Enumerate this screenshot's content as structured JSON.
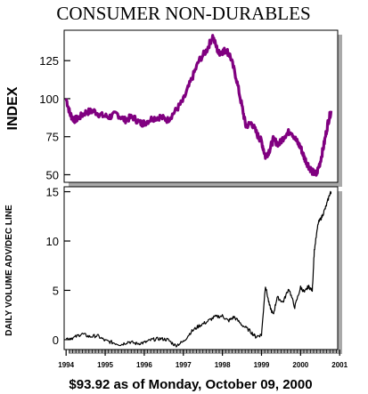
{
  "chart_data": [
    {
      "type": "line",
      "title": "CONSUMER NON-DURABLES",
      "ylabel": "INDEX",
      "ylim": [
        45,
        145
      ],
      "yticks": [
        50,
        75,
        100,
        125
      ],
      "xlim": [
        1993.95,
        2000.95
      ],
      "xticks": [
        "1994",
        "1995",
        "1996",
        "1997",
        "1998",
        "1999",
        "2000",
        "2001"
      ],
      "color": "#800080",
      "series": [
        {
          "x": [
            1994.0,
            1994.1,
            1994.2,
            1994.3,
            1994.5,
            1994.7,
            1994.9,
            1995.1,
            1995.3,
            1995.5,
            1995.7,
            1995.9,
            1996.0,
            1996.2,
            1996.4,
            1996.6,
            1996.8,
            1997.0,
            1997.2,
            1997.4,
            1997.6,
            1997.75,
            1997.9,
            1998.0,
            1998.1,
            1998.2,
            1998.35,
            1998.5,
            1998.6,
            1998.75,
            1998.9,
            1999.0,
            1999.1,
            1999.2,
            1999.3,
            1999.45,
            1999.6,
            1999.75,
            1999.9,
            2000.0,
            2000.1,
            2000.2,
            2000.3,
            2000.4,
            2000.5,
            2000.6,
            2000.7,
            2000.78
          ],
          "y": [
            100,
            90,
            86,
            87,
            91,
            92,
            89,
            88,
            90,
            86,
            88,
            84,
            84,
            87,
            88,
            86,
            92,
            99,
            112,
            125,
            132,
            141,
            130,
            131,
            132,
            128,
            114,
            95,
            82,
            84,
            76,
            72,
            62,
            66,
            73,
            70,
            76,
            79,
            72,
            68,
            61,
            56,
            52,
            50,
            58,
            70,
            84,
            92
          ]
        }
      ]
    },
    {
      "type": "line",
      "ylabel": "DAILY VOLUME ADV/DEC LINE",
      "ylim": [
        -1,
        15.5
      ],
      "yticks": [
        0,
        5,
        10,
        15
      ],
      "xlim": [
        1993.95,
        2000.95
      ],
      "xticks": [
        "1994",
        "1995",
        "1996",
        "1997",
        "1998",
        "1999",
        "2000",
        "2001"
      ],
      "color": "#000000",
      "series": [
        {
          "x": [
            1994.0,
            1994.2,
            1994.4,
            1994.6,
            1994.8,
            1995.0,
            1995.2,
            1995.4,
            1995.6,
            1995.8,
            1996.0,
            1996.2,
            1996.4,
            1996.6,
            1996.8,
            1997.0,
            1997.2,
            1997.4,
            1997.6,
            1997.8,
            1998.0,
            1998.15,
            1998.3,
            1998.5,
            1998.7,
            1998.85,
            1999.0,
            1999.1,
            1999.2,
            1999.3,
            1999.4,
            1999.55,
            1999.7,
            1999.85,
            2000.0,
            2000.1,
            2000.2,
            2000.3,
            2000.35,
            2000.45,
            2000.55,
            2000.65,
            2000.75,
            2000.78
          ],
          "y": [
            0.1,
            0.2,
            0.6,
            0.3,
            0.4,
            -0.1,
            -0.3,
            -0.5,
            -0.2,
            -0.4,
            -0.3,
            0.0,
            0.1,
            0.0,
            -0.6,
            -0.2,
            0.8,
            1.4,
            1.8,
            2.3,
            2.4,
            1.9,
            2.3,
            1.5,
            0.9,
            0.3,
            0.5,
            5.5,
            3.5,
            2.5,
            4.3,
            3.8,
            5.2,
            3.3,
            5.3,
            4.8,
            5.4,
            5.0,
            9.0,
            11.8,
            12.5,
            13.5,
            14.8,
            15.0
          ]
        }
      ]
    }
  ],
  "footer": "$93.92 as of Monday, October 09, 2000"
}
